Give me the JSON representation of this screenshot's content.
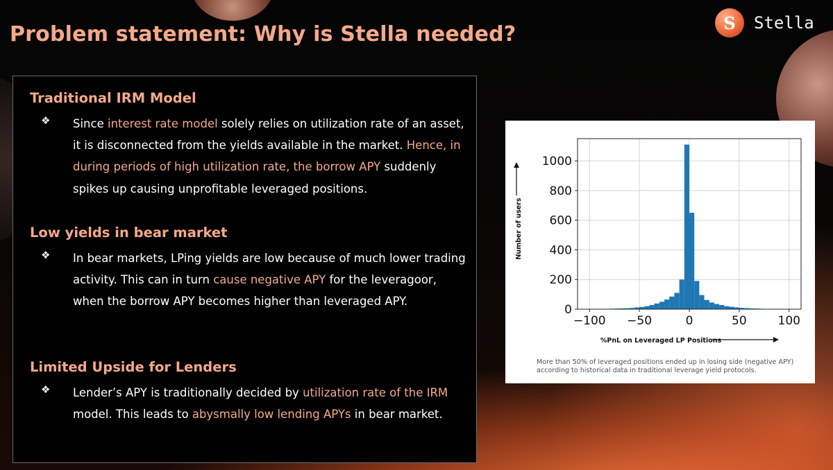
{
  "slide": {
    "title": "Problem statement: Why is Stella needed?",
    "logo": {
      "icon": "stella-logo-icon",
      "glyph": "S",
      "text": "Stella"
    },
    "colors": {
      "accent": "#f5a98a",
      "bar": "#1f77b4",
      "brand": "#ef6a3a"
    }
  },
  "sections": [
    {
      "title": "Traditional IRM Model",
      "bullet_symbol": "❖",
      "text": [
        "Since ",
        "interest rate model",
        " solely relies on utilization rate of an asset, it is disconnected from the yields available in the market. ",
        "Hence, in during periods of high utilization rate, the borrow APY",
        " suddenly spikes up causing unprofitable leveraged positions."
      ]
    },
    {
      "title": "Low yields in bear market",
      "bullet_symbol": "❖",
      "text": [
        "In bear markets, LPing yields are low because of much lower trading activity. This can in turn ",
        "cause negative APY",
        " for the leveragoor, when the borrow APY becomes higher than leveraged APY."
      ]
    },
    {
      "title": "Limited Upside for Lenders",
      "bullet_symbol": "❖",
      "text": [
        "Lender’s APY is traditionally decided by ",
        "utilization rate of the IRM",
        " model. This leads to ",
        "abysmally low lending APYs",
        " in bear market."
      ]
    }
  ],
  "chart_data": {
    "type": "bar",
    "xlabel": "%PnL on Leveraged LP Positions",
    "ylabel": "Number of users",
    "xlim": [
      -112,
      112
    ],
    "ylim": [
      0,
      1150
    ],
    "xticks": [
      -100,
      -50,
      0,
      50,
      100
    ],
    "xtick_labels": [
      "−100",
      "−50",
      "0",
      "50",
      "100"
    ],
    "yticks": [
      0,
      200,
      400,
      600,
      800,
      1000
    ],
    "grid": true,
    "bin_width": 5,
    "bin_edges": [
      -80,
      -75,
      -70,
      -65,
      -60,
      -55,
      -50,
      -45,
      -40,
      -35,
      -30,
      -25,
      -20,
      -15,
      -10,
      -5,
      0,
      5,
      10,
      15,
      20,
      25,
      30,
      35,
      40,
      45,
      50,
      55,
      60,
      65,
      70,
      75,
      80
    ],
    "values": [
      3,
      4,
      5,
      6,
      8,
      12,
      15,
      20,
      28,
      38,
      50,
      65,
      85,
      110,
      200,
      1110,
      650,
      190,
      95,
      62,
      45,
      35,
      28,
      20,
      16,
      12,
      9,
      7,
      5,
      4,
      3,
      2
    ],
    "caption": "More than 50% of leveraged positions ended up in losing side (negative APY) according to historical data in traditional leverage yield protocols."
  }
}
